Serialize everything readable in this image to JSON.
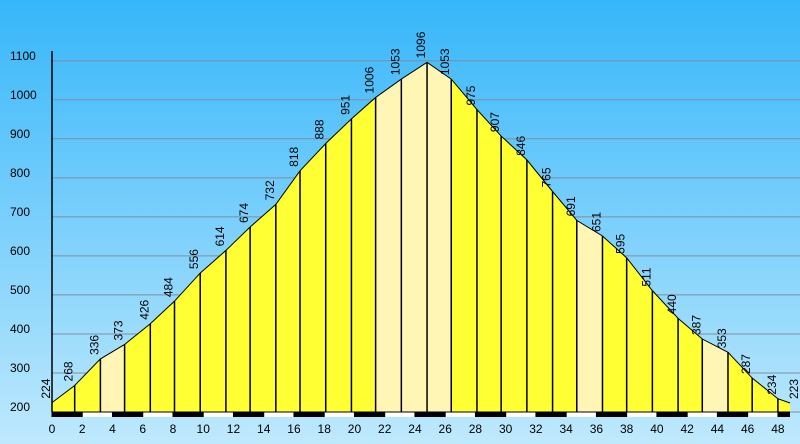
{
  "chart_data": {
    "type": "elevation",
    "x": [
      0,
      1.5,
      3.2,
      4.8,
      6.5,
      8.1,
      9.8,
      11.5,
      13.1,
      14.8,
      16.4,
      18.1,
      19.8,
      21.4,
      23.1,
      24.8,
      26.4,
      28.1,
      29.7,
      31.4,
      33.1,
      34.7,
      36.4,
      38.0,
      39.7,
      41.4,
      43.0,
      44.7,
      46.3,
      48.0,
      48.8
    ],
    "values": [
      224,
      268,
      336,
      373,
      426,
      484,
      556,
      614,
      674,
      732,
      818,
      888,
      951,
      1006,
      1053,
      1096,
      1053,
      975,
      907,
      846,
      765,
      691,
      651,
      595,
      511,
      440,
      387,
      353,
      287,
      234,
      223
    ],
    "segment_colors": [
      "#ffff33",
      "#ffff33",
      "#fff5b4",
      "#ffff33",
      "#ffff33",
      "#ffff33",
      "#ffff33",
      "#ffff33",
      "#ffff33",
      "#ffff33",
      "#ffff33",
      "#ffff33",
      "#ffff33",
      "#fff5b4",
      "#fff5b4",
      "#fff5b4",
      "#ffff33",
      "#ffff33",
      "#ffff33",
      "#ffff33",
      "#ffff33",
      "#fff5b4",
      "#ffff33",
      "#ffff33",
      "#ffff33",
      "#ffff33",
      "#fff5b4",
      "#ffff33",
      "#ffff33",
      "#ffff33"
    ],
    "xlim": [
      0,
      48.8
    ],
    "ylim": [
      200,
      1125
    ],
    "xticks": [
      0,
      2,
      4,
      6,
      8,
      10,
      12,
      14,
      16,
      18,
      20,
      22,
      24,
      26,
      28,
      30,
      32,
      34,
      36,
      38,
      40,
      42,
      44,
      46,
      48
    ],
    "yticks": [
      200,
      300,
      400,
      500,
      600,
      700,
      800,
      900,
      1000,
      1100
    ],
    "grid": true
  }
}
